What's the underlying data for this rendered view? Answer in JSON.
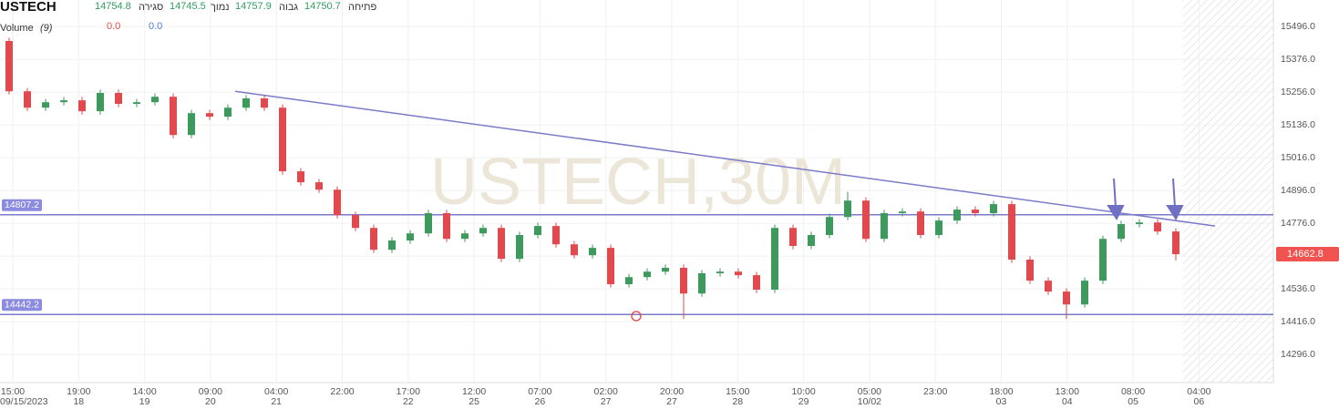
{
  "chart_data": {
    "type": "candlestick",
    "symbol": "USTECH",
    "watermark": "USTECH,30M",
    "ohlc_header": {
      "close_value": 14754.8,
      "close_label": "סגירה",
      "low_value": 14745.5,
      "low_label": "נמוך",
      "high_value": 14757.9,
      "high_label": "גבוה",
      "open_value": 14750.7,
      "open_label": "פתיחה"
    },
    "indicator": {
      "name": "Volume",
      "param": "(9)",
      "values": [
        "0.0",
        "0.0"
      ],
      "colors": [
        "#e04b4b",
        "#4a7fd4"
      ]
    },
    "up_color": "#3d9a5c",
    "down_color": "#e0494d",
    "open": [
      15443,
      15259,
      15199,
      15219,
      15226,
      15186,
      15253,
      15213,
      15219,
      15239,
      15099,
      15179,
      15166,
      15199,
      15233,
      15199,
      14966,
      14926,
      14899,
      14806,
      14759,
      14679,
      14713,
      14739,
      14813,
      14719,
      14739,
      14759,
      14646,
      14733,
      14766,
      14699,
      14659,
      14686,
      14553,
      14579,
      14599,
      14613,
      14519,
      14593,
      14599,
      14586,
      14533,
      14759,
      14693,
      14733,
      14799,
      14859,
      14719,
      14813,
      14819,
      14733,
      14786,
      14826,
      14813,
      14846,
      14643,
      14566,
      14526,
      14479,
      14566,
      14719,
      14773,
      14779,
      14746
    ],
    "high": [
      15455,
      15271,
      15231,
      15238,
      15238,
      15265,
      15265,
      15231,
      15251,
      15251,
      15191,
      15191,
      15211,
      15245,
      15245,
      15211,
      14978,
      14938,
      14911,
      14818,
      14771,
      14725,
      14751,
      14825,
      14825,
      14751,
      14771,
      14771,
      14745,
      14778,
      14778,
      14711,
      14698,
      14698,
      14591,
      14611,
      14625,
      14625,
      14605,
      14611,
      14611,
      14598,
      14771,
      14771,
      14745,
      14811,
      14891,
      14871,
      14825,
      14831,
      14831,
      14798,
      14838,
      14838,
      14858,
      14858,
      14655,
      14578,
      14538,
      14578,
      14731,
      14785,
      14791,
      14791,
      14758
    ],
    "low": [
      15247,
      15187,
      15187,
      15207,
      15174,
      15174,
      15201,
      15201,
      15207,
      15087,
      15087,
      15154,
      15154,
      15187,
      15187,
      14954,
      14914,
      14887,
      14794,
      14747,
      14667,
      14667,
      14701,
      14727,
      14707,
      14707,
      14727,
      14634,
      14634,
      14721,
      14687,
      14647,
      14647,
      14541,
      14541,
      14567,
      14587,
      14426,
      14507,
      14581,
      14574,
      14521,
      14521,
      14681,
      14681,
      14721,
      14787,
      14707,
      14707,
      14801,
      14721,
      14721,
      14774,
      14801,
      14801,
      14631,
      14554,
      14514,
      14426,
      14467,
      14554,
      14707,
      14761,
      14734,
      14640
    ],
    "close": [
      15259,
      15199,
      15219,
      15226,
      15186,
      15253,
      15213,
      15219,
      15239,
      15099,
      15179,
      15166,
      15199,
      15233,
      15199,
      14966,
      14926,
      14899,
      14806,
      14759,
      14679,
      14713,
      14739,
      14813,
      14719,
      14739,
      14759,
      14646,
      14733,
      14766,
      14699,
      14659,
      14686,
      14553,
      14579,
      14599,
      14613,
      14519,
      14593,
      14599,
      14586,
      14533,
      14759,
      14693,
      14733,
      14799,
      14859,
      14719,
      14813,
      14819,
      14733,
      14786,
      14826,
      14813,
      14846,
      14643,
      14566,
      14526,
      14479,
      14566,
      14719,
      14773,
      14779,
      14746,
      14662.8
    ],
    "levels": [
      14807.2,
      14442.2
    ],
    "level_color": "#7b7bc8",
    "trendline": [
      15259,
      14766
    ],
    "ylim": [
      14193,
      15593
    ],
    "yticks": [
      {
        "value": 15496,
        "label": "15496.0"
      },
      {
        "value": 15376,
        "label": "15376.0"
      },
      {
        "value": 15256,
        "label": "15256.0"
      },
      {
        "value": 15136,
        "label": "15136.0"
      },
      {
        "value": 15016,
        "label": "15016.0"
      },
      {
        "value": 14896,
        "label": "14896.0"
      },
      {
        "value": 14776,
        "label": "14776.0"
      },
      {
        "value": 14656,
        "label": "14656.0"
      },
      {
        "value": 14536,
        "label": "14536.0"
      },
      {
        "value": 14416,
        "label": "14416.0"
      },
      {
        "value": 14296,
        "label": "14296.0"
      }
    ],
    "xticks": [
      [
        "15:00",
        "09/15/2023"
      ],
      [
        "19:00",
        "18"
      ],
      [
        "14:00",
        "19"
      ],
      [
        "09:00",
        "20"
      ],
      [
        "04:00",
        "21"
      ],
      [
        "22:00",
        null
      ],
      [
        "17:00",
        "22"
      ],
      [
        "12:00",
        "25"
      ],
      [
        "07:00",
        "26"
      ],
      [
        "02:00",
        "27"
      ],
      [
        "20:00",
        "27"
      ],
      [
        "15:00",
        "28"
      ],
      [
        "10:00",
        "29"
      ],
      [
        "05:00",
        "10/02"
      ],
      [
        "23:00",
        null
      ],
      [
        "18:00",
        "03"
      ],
      [
        "13:00",
        "04"
      ],
      [
        "08:00",
        "05"
      ],
      [
        "04:00",
        "06"
      ]
    ],
    "grid": true
  }
}
